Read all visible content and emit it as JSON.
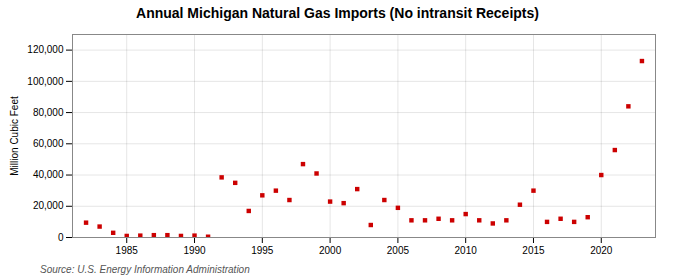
{
  "chart_data": {
    "type": "scatter",
    "title": "Annual Michigan Natural Gas Imports (No intransit Receipts)",
    "ylabel": "Million Cubic Feet",
    "source": "Source: U.S. Energy Information Administration",
    "x": [
      1982,
      1983,
      1984,
      1985,
      1986,
      1987,
      1988,
      1989,
      1990,
      1991,
      1992,
      1993,
      1994,
      1995,
      1996,
      1997,
      1998,
      1999,
      2000,
      2001,
      2002,
      2003,
      2004,
      2005,
      2006,
      2007,
      2008,
      2009,
      2010,
      2011,
      2012,
      2013,
      2014,
      2015,
      2016,
      2017,
      2018,
      2019,
      2020,
      2021,
      2022,
      2023
    ],
    "values": [
      9500,
      7000,
      3000,
      1000,
      1200,
      1500,
      1500,
      1000,
      1200,
      500,
      38500,
      35000,
      17000,
      27000,
      30000,
      24000,
      47000,
      41000,
      23000,
      22000,
      31000,
      8000,
      24000,
      19000,
      11000,
      11000,
      12000,
      11000,
      15000,
      11000,
      9000,
      11000,
      21000,
      30000,
      10000,
      12000,
      10000,
      13000,
      40000,
      56000,
      84000,
      113000
    ],
    "color": "#cc0000",
    "marker": "square",
    "xlim": [
      1981,
      2024
    ],
    "xticks": [
      1985,
      1990,
      1995,
      2000,
      2005,
      2010,
      2015,
      2020
    ],
    "ylim": [
      0,
      130000
    ],
    "yticks": [
      0,
      {
        "value": 20000,
        "label": "20,000"
      },
      {
        "value": 40000,
        "label": "40,000"
      },
      {
        "value": 60000,
        "label": "60,000"
      },
      {
        "value": 80000,
        "label": "80,000"
      },
      {
        "value": 100000,
        "label": "100,000"
      },
      {
        "value": 120000,
        "label": "120,000"
      }
    ],
    "grid": true
  }
}
